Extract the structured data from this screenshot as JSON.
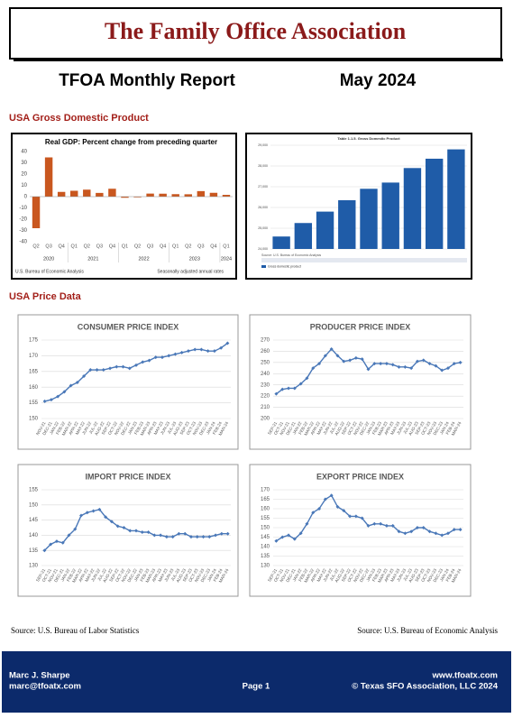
{
  "header": {
    "title": "The Family Office Association"
  },
  "report": {
    "title": "TFOA Monthly Report",
    "date": "May 2024"
  },
  "sections": [
    "USA Gross Domestic Product",
    "USA Price Data"
  ],
  "charts": [
    {
      "type": "bar",
      "title": "Real GDP:  Percent change from preceding quarter",
      "color": "#c9571f",
      "categories": [
        "Q2",
        "Q3",
        "Q4",
        "Q1",
        "Q2",
        "Q3",
        "Q4",
        "Q1",
        "Q2",
        "Q3",
        "Q4",
        "Q1",
        "Q2",
        "Q3",
        "Q4",
        "Q1"
      ],
      "groups": [
        {
          "label": "2020",
          "categories": [
            "Q2",
            "Q3",
            "Q4"
          ]
        },
        {
          "label": "2021",
          "categories": [
            "Q1",
            "Q2",
            "Q3",
            "Q4"
          ]
        },
        {
          "label": "2022",
          "categories": [
            "Q1",
            "Q2",
            "Q3",
            "Q4"
          ]
        },
        {
          "label": "2023",
          "categories": [
            "Q1",
            "Q2",
            "Q3",
            "Q4"
          ]
        },
        {
          "label": "2024",
          "categories": [
            "Q1"
          ]
        }
      ],
      "values": [
        -28,
        34.8,
        4.2,
        5.2,
        6.2,
        3.3,
        7.0,
        -1.0,
        -0.6,
        2.7,
        2.6,
        2.2,
        2.1,
        4.9,
        3.4,
        1.6
      ],
      "ylim": [
        -40,
        40
      ],
      "yticks": [
        40,
        30,
        20,
        10,
        0,
        -10,
        -20,
        -30,
        -40
      ],
      "grid": false,
      "notes": [
        "U.S. Bureau of Economic Analysis",
        "Seasonally adjusted annual rates"
      ]
    },
    {
      "type": "bar",
      "title": "Table 1.1.5. Gross Domestic Product",
      "color": "#1f5ca8",
      "values": [
        24600,
        25250,
        25800,
        26350,
        26900,
        27200,
        27900,
        28350,
        28800
      ],
      "ylim": [
        24000,
        29000
      ],
      "yticks": [
        {
          "value": 24000,
          "label": "24,000"
        },
        {
          "value": 25000,
          "label": "25,000"
        },
        {
          "value": 26000,
          "label": "26,000"
        },
        {
          "value": 27000,
          "label": "27,000"
        },
        {
          "value": 28000,
          "label": "28,000"
        },
        {
          "value": 29000,
          "label": "29,000"
        }
      ],
      "grid": true,
      "legend": "Gross domestic product",
      "notes": [
        "Source: U.S. Bureau of Economic Analysis"
      ]
    },
    {
      "type": "line",
      "title": "CONSUMER PRICE INDEX",
      "color": "#4a78b8",
      "categories": [
        "NOV-21",
        "DEC-21",
        "JAN-22",
        "FEB-22",
        "MAR-22",
        "APR-22",
        "MAY-22",
        "JUN-22",
        "JUL-22",
        "AUG-22",
        "SEP-22",
        "OCT-22",
        "NOV-22",
        "DEC-22",
        "JAN-23",
        "FEB-23",
        "MAR-23",
        "APR-23",
        "MAY-23",
        "JUN-23",
        "JUL-23",
        "AUG-23",
        "SEP-23",
        "OCT-23",
        "NOV-23",
        "DEC-23",
        "JAN-24",
        "FEB-24",
        "MAR-24"
      ],
      "values": [
        155.5,
        156,
        157,
        158.5,
        160.5,
        161.5,
        163.5,
        165.5,
        165.5,
        165.5,
        166,
        166.5,
        166.5,
        166,
        167,
        168,
        168.5,
        169.5,
        169.5,
        170,
        170.5,
        171,
        171.5,
        172,
        172,
        171.5,
        171.5,
        172.5,
        174
      ],
      "ylim": [
        150,
        175
      ],
      "yticks": [
        150,
        155,
        160,
        165,
        170,
        175
      ],
      "grid": true
    },
    {
      "type": "line",
      "title": "PRODUCER PRICE INDEX",
      "color": "#4a78b8",
      "categories": [
        "SEP-21",
        "OCT-21",
        "NOV-21",
        "DEC-21",
        "JAN-22",
        "FEB-22",
        "MAR-22",
        "APR-22",
        "MAY-22",
        "JUN-22",
        "JUL-22",
        "AUG-22",
        "SEP-22",
        "OCT-22",
        "NOV-22",
        "DEC-22",
        "JAN-23",
        "FEB-23",
        "MAR-23",
        "APR-23",
        "MAY-23",
        "JUN-23",
        "JUL-23",
        "AUG-23",
        "SEP-23",
        "OCT-23",
        "NOV-23",
        "DEC-23",
        "JAN-24",
        "FEB-24",
        "MAR-24"
      ],
      "values": [
        222,
        226,
        227,
        227,
        231,
        236,
        245,
        249,
        256,
        262,
        256,
        251,
        252,
        254,
        253,
        244,
        249,
        249,
        249,
        248,
        246,
        246,
        245,
        251,
        252,
        249,
        247,
        243,
        245,
        249,
        250
      ],
      "ylim": [
        200,
        270
      ],
      "yticks": [
        200,
        210,
        220,
        230,
        240,
        250,
        260,
        270
      ],
      "grid": true
    },
    {
      "type": "line",
      "title": "IMPORT PRICE INDEX",
      "color": "#4a78b8",
      "categories": [
        "SEP-21",
        "OCT-21",
        "NOV-21",
        "DEC-21",
        "JAN-22",
        "FEB-22",
        "MAR-22",
        "APR-22",
        "MAY-22",
        "JUN-22",
        "JUL-22",
        "AUG-22",
        "SEP-22",
        "OCT-22",
        "NOV-22",
        "DEC-22",
        "JAN-23",
        "FEB-23",
        "MAR-23",
        "APR-23",
        "MAY-23",
        "JUN-23",
        "JUL-23",
        "AUG-23",
        "SEP-23",
        "OCT-23",
        "NOV-23",
        "DEC-23",
        "JAN-24",
        "FEB-24",
        "MAR-24"
      ],
      "values": [
        135,
        137,
        138,
        137.5,
        140,
        142,
        146.5,
        147.5,
        148,
        148.5,
        146,
        144.5,
        143,
        142.5,
        141.5,
        141.5,
        141,
        141,
        140,
        140,
        139.5,
        139.5,
        140.5,
        140.5,
        139.5,
        139.5,
        139.5,
        139.5,
        140,
        140.5,
        140.5
      ],
      "ylim": [
        130,
        155
      ],
      "yticks": [
        130,
        135,
        140,
        145,
        150,
        155
      ],
      "grid": true
    },
    {
      "type": "line",
      "title": "EXPORT PRICE INDEX",
      "color": "#4a78b8",
      "categories": [
        "SEP-21",
        "OCT-21",
        "NOV-21",
        "DEC-21",
        "JAN-22",
        "FEB-22",
        "MAR-22",
        "APR-22",
        "MAY-22",
        "JUN-22",
        "JUL-22",
        "AUG-22",
        "SEP-22",
        "OCT-22",
        "NOV-22",
        "DEC-22",
        "JAN-23",
        "FEB-23",
        "MAR-23",
        "APR-23",
        "MAY-23",
        "JUN-23",
        "JUL-23",
        "AUG-23",
        "SEP-23",
        "OCT-23",
        "NOV-23",
        "DEC-23",
        "JAN-24",
        "FEB-24",
        "MAR-24"
      ],
      "values": [
        143,
        145,
        146,
        144,
        147,
        152,
        158,
        160,
        165,
        167,
        161,
        159,
        156,
        156,
        155,
        151,
        152,
        152,
        151,
        151,
        148,
        147,
        148,
        150,
        150,
        148,
        147,
        146,
        147,
        149,
        149
      ],
      "ylim": [
        130,
        170
      ],
      "yticks": [
        130,
        135,
        140,
        145,
        150,
        155,
        160,
        165,
        170
      ],
      "grid": true
    }
  ],
  "sources": [
    "Source: U.S. Bureau of Labor Statistics",
    "Source: U.S. Bureau of Economic Analysis"
  ],
  "footer": {
    "name": "Marc J. Sharpe",
    "email": "marc@tfoatx.com",
    "page": "Page 1",
    "website": "www.tfoatx.com",
    "copyright": "© Texas SFO Association, LLC 2024"
  }
}
